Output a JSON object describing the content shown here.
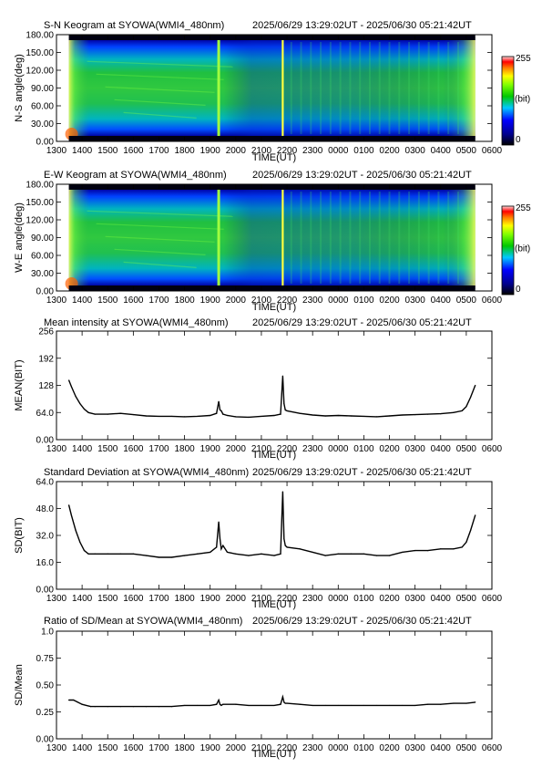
{
  "time_ticks": [
    "1300",
    "1400",
    "1500",
    "1600",
    "1700",
    "1800",
    "1900",
    "2000",
    "2100",
    "2200",
    "2300",
    "0000",
    "0100",
    "0200",
    "0300",
    "0400",
    "0500",
    "0600"
  ],
  "time_label": "TIME(UT)",
  "range_text": "2025/06/29 13:29:02UT - 2025/06/30 05:21:42UT",
  "colorbar": {
    "min_label": "0",
    "max_label": "255",
    "unit_label": "(bit)"
  },
  "keogram_colors": [
    "#00008c",
    "#0000ff",
    "#0080ff",
    "#00c8c8",
    "#00c800",
    "#80ff00",
    "#ffff00",
    "#ff8000",
    "#ff0000",
    "#ffc8c8"
  ],
  "chart_data": [
    {
      "type": "heatmap",
      "title": "S-N Keogram at SYOWA(WMI4_480nm)",
      "xlabel": "TIME(UT)",
      "ylabel": "N-S angle(deg)",
      "yticks": [
        "0.00",
        "30.00",
        "60.00",
        "90.00",
        "120.00",
        "150.00",
        "180.00"
      ],
      "ylim": [
        0,
        180
      ],
      "xlim": [
        "13:00",
        "06:00"
      ],
      "data_start": "13:29",
      "data_end": "05:21",
      "value_range": [
        0,
        255
      ],
      "bright_vertical_features_ut": [
        "19:20",
        "21:50"
      ]
    },
    {
      "type": "heatmap",
      "title": "E-W Keogram at SYOWA(WMI4_480nm)",
      "xlabel": "TIME(UT)",
      "ylabel": "W-E angle(deg)",
      "yticks": [
        "0.00",
        "30.00",
        "60.00",
        "90.00",
        "120.00",
        "150.00",
        "180.00"
      ],
      "ylim": [
        0,
        180
      ],
      "xlim": [
        "13:00",
        "06:00"
      ],
      "data_start": "13:29",
      "data_end": "05:21",
      "value_range": [
        0,
        255
      ],
      "bright_vertical_features_ut": [
        "19:20",
        "21:50"
      ]
    },
    {
      "type": "line",
      "title": "Mean intensity at SYOWA(WMI4_480nm)",
      "xlabel": "TIME(UT)",
      "ylabel": "MEAN(BIT)",
      "yticks": [
        "0.00",
        "64.0",
        "128",
        "192",
        "256"
      ],
      "ylim": [
        0,
        256
      ],
      "xlim": [
        "13:00",
        "06:00"
      ],
      "series": [
        {
          "x": [
            "13:29",
            "13:35",
            "13:45",
            "13:55",
            "14:05",
            "14:15",
            "14:30",
            "15:00",
            "15:30",
            "16:00",
            "16:30",
            "17:00",
            "17:30",
            "18:00",
            "18:30",
            "19:00",
            "19:15",
            "19:20",
            "19:23",
            "19:26",
            "19:30",
            "19:40",
            "20:00",
            "20:30",
            "21:00",
            "21:30",
            "21:45",
            "21:50",
            "21:53",
            "21:56",
            "22:00",
            "22:30",
            "23:00",
            "23:30",
            "00:00",
            "00:30",
            "01:00",
            "01:30",
            "02:00",
            "02:30",
            "03:00",
            "03:30",
            "04:00",
            "04:30",
            "04:50",
            "05:00",
            "05:10",
            "05:21"
          ],
          "y": [
            140,
            125,
            102,
            85,
            72,
            64,
            60,
            60,
            62,
            59,
            56,
            55,
            55,
            54,
            55,
            57,
            62,
            90,
            70,
            68,
            60,
            57,
            54,
            53,
            55,
            57,
            60,
            150,
            85,
            70,
            68,
            62,
            58,
            56,
            57,
            56,
            55,
            54,
            56,
            58,
            59,
            60,
            61,
            64,
            68,
            78,
            100,
            128
          ]
        }
      ]
    },
    {
      "type": "line",
      "title": "Standard Deviation at SYOWA(WMI4_480nm)",
      "xlabel": "TIME(UT)",
      "ylabel": "SD(BIT)",
      "yticks": [
        "0.00",
        "16.0",
        "32.0",
        "48.0",
        "64.0"
      ],
      "ylim": [
        0,
        64
      ],
      "xlim": [
        "13:00",
        "06:00"
      ],
      "series": [
        {
          "x": [
            "13:29",
            "13:35",
            "13:45",
            "13:55",
            "14:05",
            "14:15",
            "14:30",
            "15:00",
            "15:30",
            "16:00",
            "16:30",
            "17:00",
            "17:30",
            "18:00",
            "18:30",
            "19:00",
            "19:15",
            "19:20",
            "19:23",
            "19:26",
            "19:30",
            "19:40",
            "20:00",
            "20:30",
            "21:00",
            "21:30",
            "21:45",
            "21:50",
            "21:53",
            "21:56",
            "22:00",
            "22:30",
            "23:00",
            "23:30",
            "00:00",
            "00:30",
            "01:00",
            "01:30",
            "02:00",
            "02:30",
            "03:00",
            "03:30",
            "04:00",
            "04:30",
            "04:50",
            "05:00",
            "05:10",
            "05:21"
          ],
          "y": [
            50,
            44,
            35,
            28,
            23,
            21,
            21,
            21,
            21,
            21,
            20,
            19,
            19,
            20,
            21,
            22,
            25,
            40,
            30,
            24,
            26,
            22,
            21,
            20,
            21,
            20,
            21,
            58,
            30,
            26,
            25,
            24,
            22,
            20,
            21,
            21,
            21,
            20,
            20,
            22,
            23,
            23,
            24,
            24,
            25,
            28,
            35,
            44
          ]
        }
      ]
    },
    {
      "type": "line",
      "title": "Ratio of SD/Mean at SYOWA(WMI4_480nm)",
      "xlabel": "TIME(UT)",
      "ylabel": "SD/Mean",
      "yticks": [
        "0.00",
        "0.25",
        "0.50",
        "0.75",
        "1.0"
      ],
      "ylim": [
        0,
        1.0
      ],
      "xlim": [
        "13:00",
        "06:00"
      ],
      "series": [
        {
          "x": [
            "13:29",
            "13:40",
            "13:50",
            "14:00",
            "14:10",
            "14:20",
            "14:30",
            "15:00",
            "15:30",
            "16:00",
            "16:30",
            "17:00",
            "17:30",
            "18:00",
            "18:30",
            "19:00",
            "19:15",
            "19:20",
            "19:23",
            "19:26",
            "19:30",
            "20:00",
            "20:30",
            "21:00",
            "21:30",
            "21:45",
            "21:50",
            "21:53",
            "21:56",
            "22:00",
            "22:30",
            "23:00",
            "23:30",
            "00:00",
            "00:30",
            "01:00",
            "01:30",
            "02:00",
            "02:30",
            "03:00",
            "03:30",
            "04:00",
            "04:30",
            "05:00",
            "05:21"
          ],
          "y": [
            0.36,
            0.36,
            0.34,
            0.32,
            0.31,
            0.3,
            0.3,
            0.3,
            0.3,
            0.3,
            0.3,
            0.3,
            0.3,
            0.31,
            0.31,
            0.31,
            0.32,
            0.36,
            0.32,
            0.31,
            0.32,
            0.32,
            0.31,
            0.31,
            0.31,
            0.32,
            0.39,
            0.34,
            0.33,
            0.33,
            0.32,
            0.31,
            0.31,
            0.31,
            0.31,
            0.31,
            0.31,
            0.31,
            0.31,
            0.31,
            0.32,
            0.32,
            0.33,
            0.33,
            0.34
          ]
        }
      ]
    }
  ]
}
